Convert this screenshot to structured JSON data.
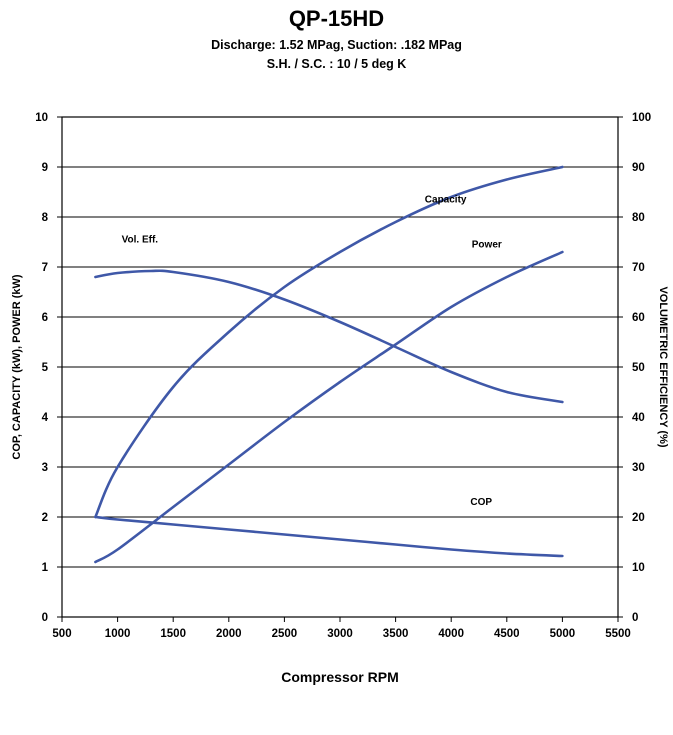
{
  "chart_data": {
    "type": "line",
    "title": "QP-15HD",
    "subtitle_line1": "Discharge: 1.52 MPag, Suction: .182 MPag",
    "subtitle_line2": "S.H. / S.C. : 10 / 5 deg K",
    "xlabel": "Compressor RPM",
    "ylabel_left": "COP, CAPACITY (kW), POWER (kW)",
    "ylabel_right": "VOLUMETRIC EFFICIENCY (%)",
    "xlim": [
      500,
      5500
    ],
    "ylim_left": [
      0,
      10
    ],
    "ylim_right": [
      0,
      100
    ],
    "x_ticks": [
      "500",
      "1000",
      "1500",
      "2000",
      "2500",
      "3000",
      "3500",
      "4000",
      "4500",
      "5000",
      "5500"
    ],
    "y_ticks_left": [
      "0",
      "1",
      "2",
      "3",
      "4",
      "5",
      "6",
      "7",
      "8",
      "9",
      "10"
    ],
    "y_ticks_right": [
      "0",
      "10",
      "20",
      "30",
      "40",
      "50",
      "60",
      "70",
      "80",
      "90",
      "100"
    ],
    "grid": "horizontal",
    "line_color": "#3f58a8",
    "series": [
      {
        "name": "Capacity",
        "axis": "left",
        "x": [
          800,
          1000,
          1500,
          2000,
          2500,
          3000,
          3500,
          4000,
          4500,
          5000
        ],
        "y": [
          2.0,
          3.0,
          4.6,
          5.7,
          6.6,
          7.3,
          7.9,
          8.4,
          8.75,
          9.0
        ]
      },
      {
        "name": "Power",
        "axis": "left",
        "x": [
          800,
          1000,
          1500,
          2000,
          2500,
          3000,
          3500,
          4000,
          4500,
          5000
        ],
        "y": [
          1.1,
          1.35,
          2.2,
          3.05,
          3.9,
          4.7,
          5.45,
          6.2,
          6.8,
          7.3
        ]
      },
      {
        "name": "COP",
        "axis": "left",
        "x": [
          800,
          1000,
          1500,
          2000,
          2500,
          3000,
          3500,
          4000,
          4500,
          5000
        ],
        "y": [
          2.0,
          1.95,
          1.85,
          1.75,
          1.65,
          1.55,
          1.45,
          1.35,
          1.27,
          1.22
        ]
      },
      {
        "name": "Vol. Eff.",
        "axis": "right",
        "x": [
          800,
          1000,
          1300,
          1500,
          2000,
          2500,
          3000,
          3500,
          4000,
          4500,
          5000
        ],
        "y": [
          68.0,
          68.8,
          69.2,
          69.0,
          67.0,
          63.5,
          59.0,
          54.0,
          49.0,
          45.0,
          43.0
        ]
      }
    ],
    "annotations": [
      {
        "text": "Capacity",
        "series": "Capacity",
        "x": 3950,
        "y": 8.35
      },
      {
        "text": "Power",
        "series": "Power",
        "x": 4320,
        "y": 7.45
      },
      {
        "text": "Vol. Eff.",
        "series": "Vol. Eff.",
        "x": 1200,
        "y": 7.55
      },
      {
        "text": "COP",
        "series": "COP",
        "x": 4270,
        "y": 2.3
      }
    ]
  }
}
